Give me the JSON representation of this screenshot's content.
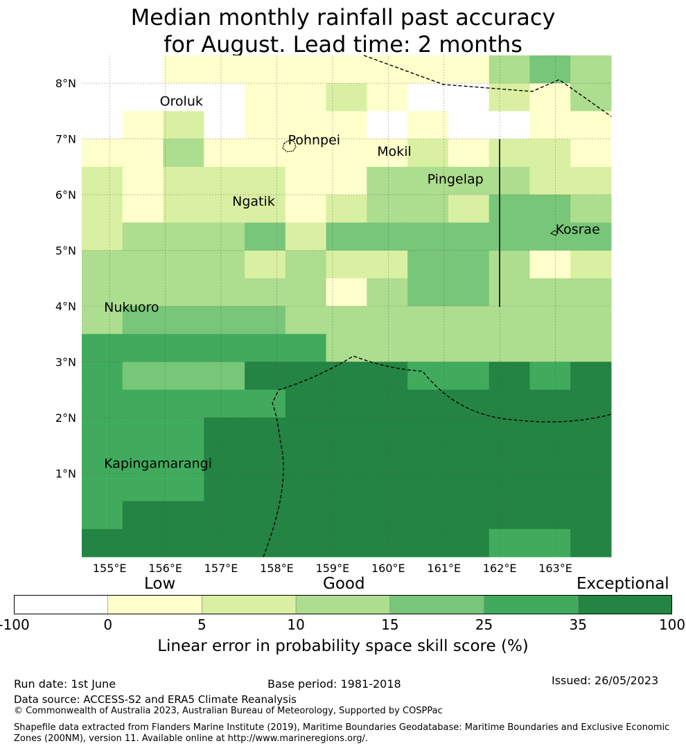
{
  "title": {
    "line1": "Median monthly rainfall past accuracy",
    "line2": "for August. Lead time: 2 months"
  },
  "map": {
    "lon_range": [
      154.5,
      164.0
    ],
    "lat_range": [
      -0.5,
      8.5
    ],
    "lon_tick_labels": [
      "155°E",
      "156°E",
      "157°E",
      "158°E",
      "159°E",
      "160°E",
      "161°E",
      "162°E",
      "163°E"
    ],
    "lat_tick_labels": [
      "1°N",
      "2°N",
      "3°N",
      "4°N",
      "5°N",
      "6°N",
      "7°N",
      "8°N"
    ],
    "grid": true,
    "cell_values": [
      [
        0,
        0,
        1,
        1,
        1,
        1,
        1,
        1,
        1,
        1,
        3,
        4,
        3
      ],
      [
        0,
        0,
        0,
        0,
        1,
        1,
        2,
        1,
        0,
        0,
        2,
        1,
        3
      ],
      [
        0,
        1,
        2,
        0,
        1,
        1,
        1,
        0,
        1,
        0,
        0,
        1,
        1
      ],
      [
        1,
        1,
        3,
        1,
        1,
        1,
        1,
        1,
        2,
        1,
        2,
        2,
        1
      ],
      [
        2,
        1,
        2,
        2,
        2,
        1,
        1,
        3,
        3,
        3,
        3,
        2,
        2
      ],
      [
        2,
        1,
        2,
        2,
        2,
        1,
        2,
        3,
        3,
        2,
        4,
        4,
        3
      ],
      [
        2,
        3,
        3,
        3,
        4,
        2,
        4,
        4,
        4,
        4,
        4,
        4,
        4
      ],
      [
        3,
        3,
        3,
        3,
        2,
        3,
        2,
        2,
        4,
        4,
        3,
        1,
        2
      ],
      [
        3,
        3,
        3,
        3,
        3,
        3,
        1,
        3,
        4,
        4,
        3,
        3,
        3
      ],
      [
        3,
        4,
        4,
        4,
        4,
        3,
        3,
        3,
        3,
        3,
        3,
        3,
        3
      ],
      [
        5,
        5,
        5,
        5,
        5,
        5,
        3,
        3,
        3,
        3,
        3,
        3,
        3
      ],
      [
        5,
        4,
        4,
        4,
        6,
        6,
        6,
        6,
        5,
        5,
        6,
        5,
        6
      ],
      [
        5,
        5,
        5,
        5,
        5,
        6,
        6,
        6,
        6,
        6,
        6,
        6,
        6
      ],
      [
        5,
        5,
        5,
        6,
        6,
        6,
        6,
        6,
        6,
        6,
        6,
        6,
        6
      ],
      [
        5,
        5,
        5,
        6,
        6,
        6,
        6,
        6,
        6,
        6,
        6,
        6,
        6
      ],
      [
        5,
        5,
        5,
        6,
        6,
        6,
        6,
        6,
        6,
        6,
        6,
        6,
        6
      ],
      [
        5,
        6,
        6,
        6,
        6,
        6,
        6,
        6,
        6,
        6,
        6,
        6,
        6
      ],
      [
        6,
        6,
        6,
        6,
        6,
        6,
        6,
        6,
        6,
        6,
        5,
        5,
        6
      ]
    ],
    "islands": [
      {
        "name": "Oroluk",
        "lon": 155.9,
        "lat": 7.6
      },
      {
        "name": "Pohnpei",
        "lon": 158.2,
        "lat": 6.9
      },
      {
        "name": "Mokil",
        "lon": 159.8,
        "lat": 6.7
      },
      {
        "name": "Pingelap",
        "lon": 160.7,
        "lat": 6.2
      },
      {
        "name": "Ngatik",
        "lon": 157.2,
        "lat": 5.8
      },
      {
        "name": "Kosrae",
        "lon": 163.0,
        "lat": 5.3
      },
      {
        "name": "Nukuoro",
        "lon": 154.9,
        "lat": 3.9
      },
      {
        "name": "Kapingamarangi",
        "lon": 154.9,
        "lat": 1.1
      }
    ]
  },
  "colorbar": {
    "categories": [
      "Low",
      "Good",
      "Exceptional"
    ],
    "ticks": [
      "-100",
      "0",
      "5",
      "10",
      "15",
      "25",
      "35",
      "100"
    ],
    "colors": [
      "#ffffff",
      "#ffffcc",
      "#d9f0a3",
      "#addd8e",
      "#78c679",
      "#41ab5d",
      "#238443"
    ],
    "label": "Linear error in probability space skill score (%)"
  },
  "footer": {
    "run_date": "Run date: 1st June",
    "base_period": "Base period: 1981-2018",
    "issued": "Issued: 26/05/2023",
    "data_source": "Data source: ACCESS-S2 and ERA5 Climate Reanalysis",
    "copyright": "© Commonwealth of Australia 2023, Australian Bureau of Meteorology, Supported by COSPPac",
    "shapefile": "Shapefile data extracted from Flanders Marine Institute (2019), Maritime Boundaries Geodatabase: Maritime Boundaries and Exclusive Economic Zones (200NM), version 11. Available online at http://www.marineregions.org/."
  }
}
